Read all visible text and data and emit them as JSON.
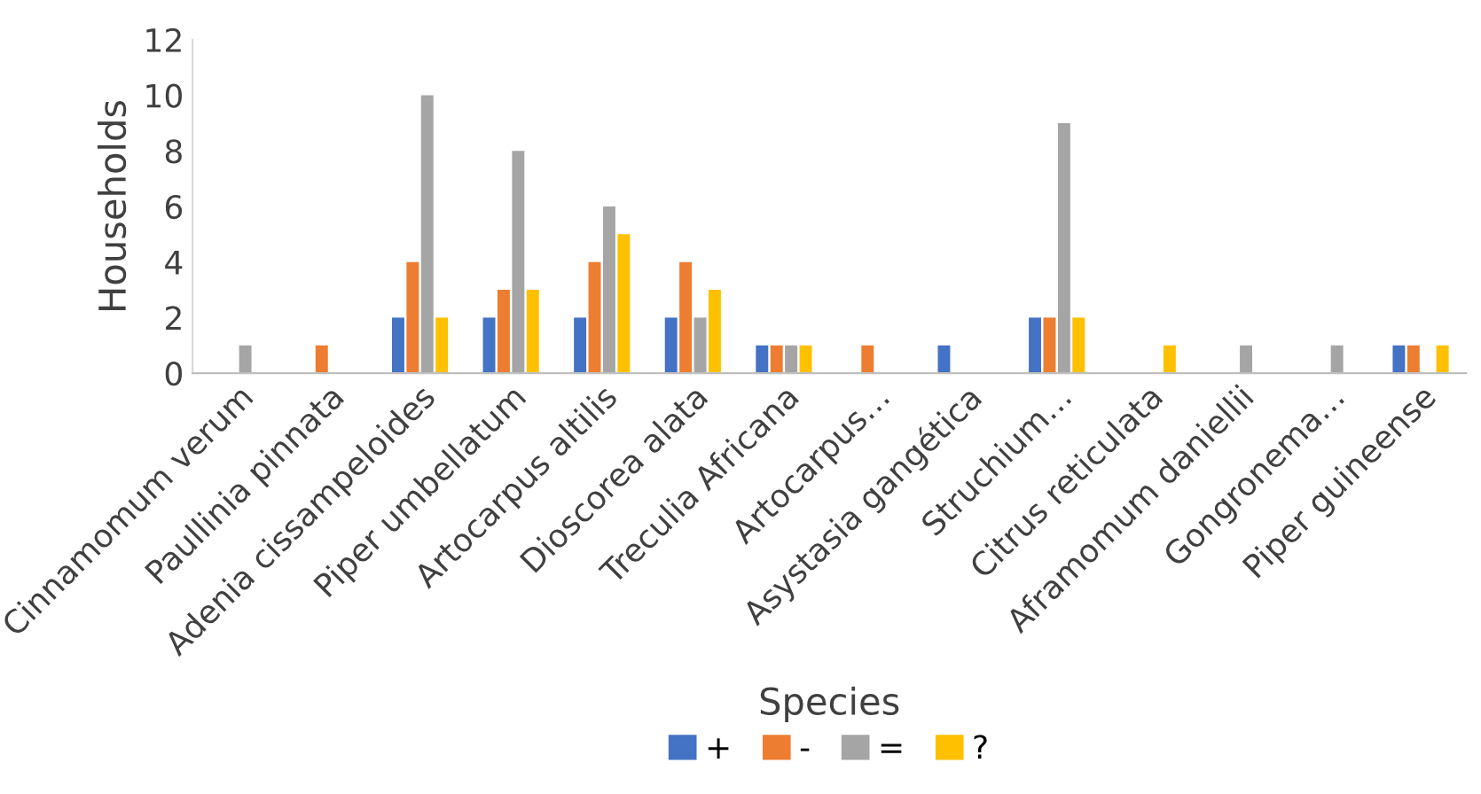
{
  "chart_data": {
    "type": "bar",
    "xlabel": "Species",
    "ylabel": "Households",
    "categories": [
      "Cinnamomum verum",
      "Paullinia pinnata",
      "Adenia cissampeloides",
      "Piper umbellatum",
      "Artocarpus altilis",
      "Dioscorea alata",
      "Treculia Africana",
      "Artocarpus…",
      "Asystasia gangética",
      "Struchium…",
      "Citrus reticulata",
      "Aframomum daniellii",
      "Gongronema…",
      "Piper guineense"
    ],
    "series": [
      {
        "name": "+",
        "color": "#4472c4",
        "values": [
          0,
          0,
          2,
          2,
          2,
          2,
          1,
          0,
          1,
          2,
          0,
          0,
          0,
          1
        ]
      },
      {
        "name": "-",
        "color": "#ed7d31",
        "values": [
          0,
          1,
          4,
          3,
          4,
          4,
          1,
          1,
          0,
          2,
          0,
          0,
          0,
          1
        ]
      },
      {
        "name": "=",
        "color": "#a5a5a5",
        "values": [
          1,
          0,
          10,
          8,
          6,
          2,
          1,
          0,
          0,
          9,
          0,
          1,
          1,
          0
        ]
      },
      {
        "name": "?",
        "color": "#ffc000",
        "values": [
          0,
          0,
          2,
          3,
          5,
          3,
          1,
          0,
          0,
          2,
          1,
          0,
          0,
          1
        ]
      }
    ],
    "ylim": [
      0,
      12
    ],
    "yticks": [
      0,
      2,
      4,
      6,
      8,
      10,
      12
    ],
    "grid": false,
    "legend": "bottom"
  }
}
